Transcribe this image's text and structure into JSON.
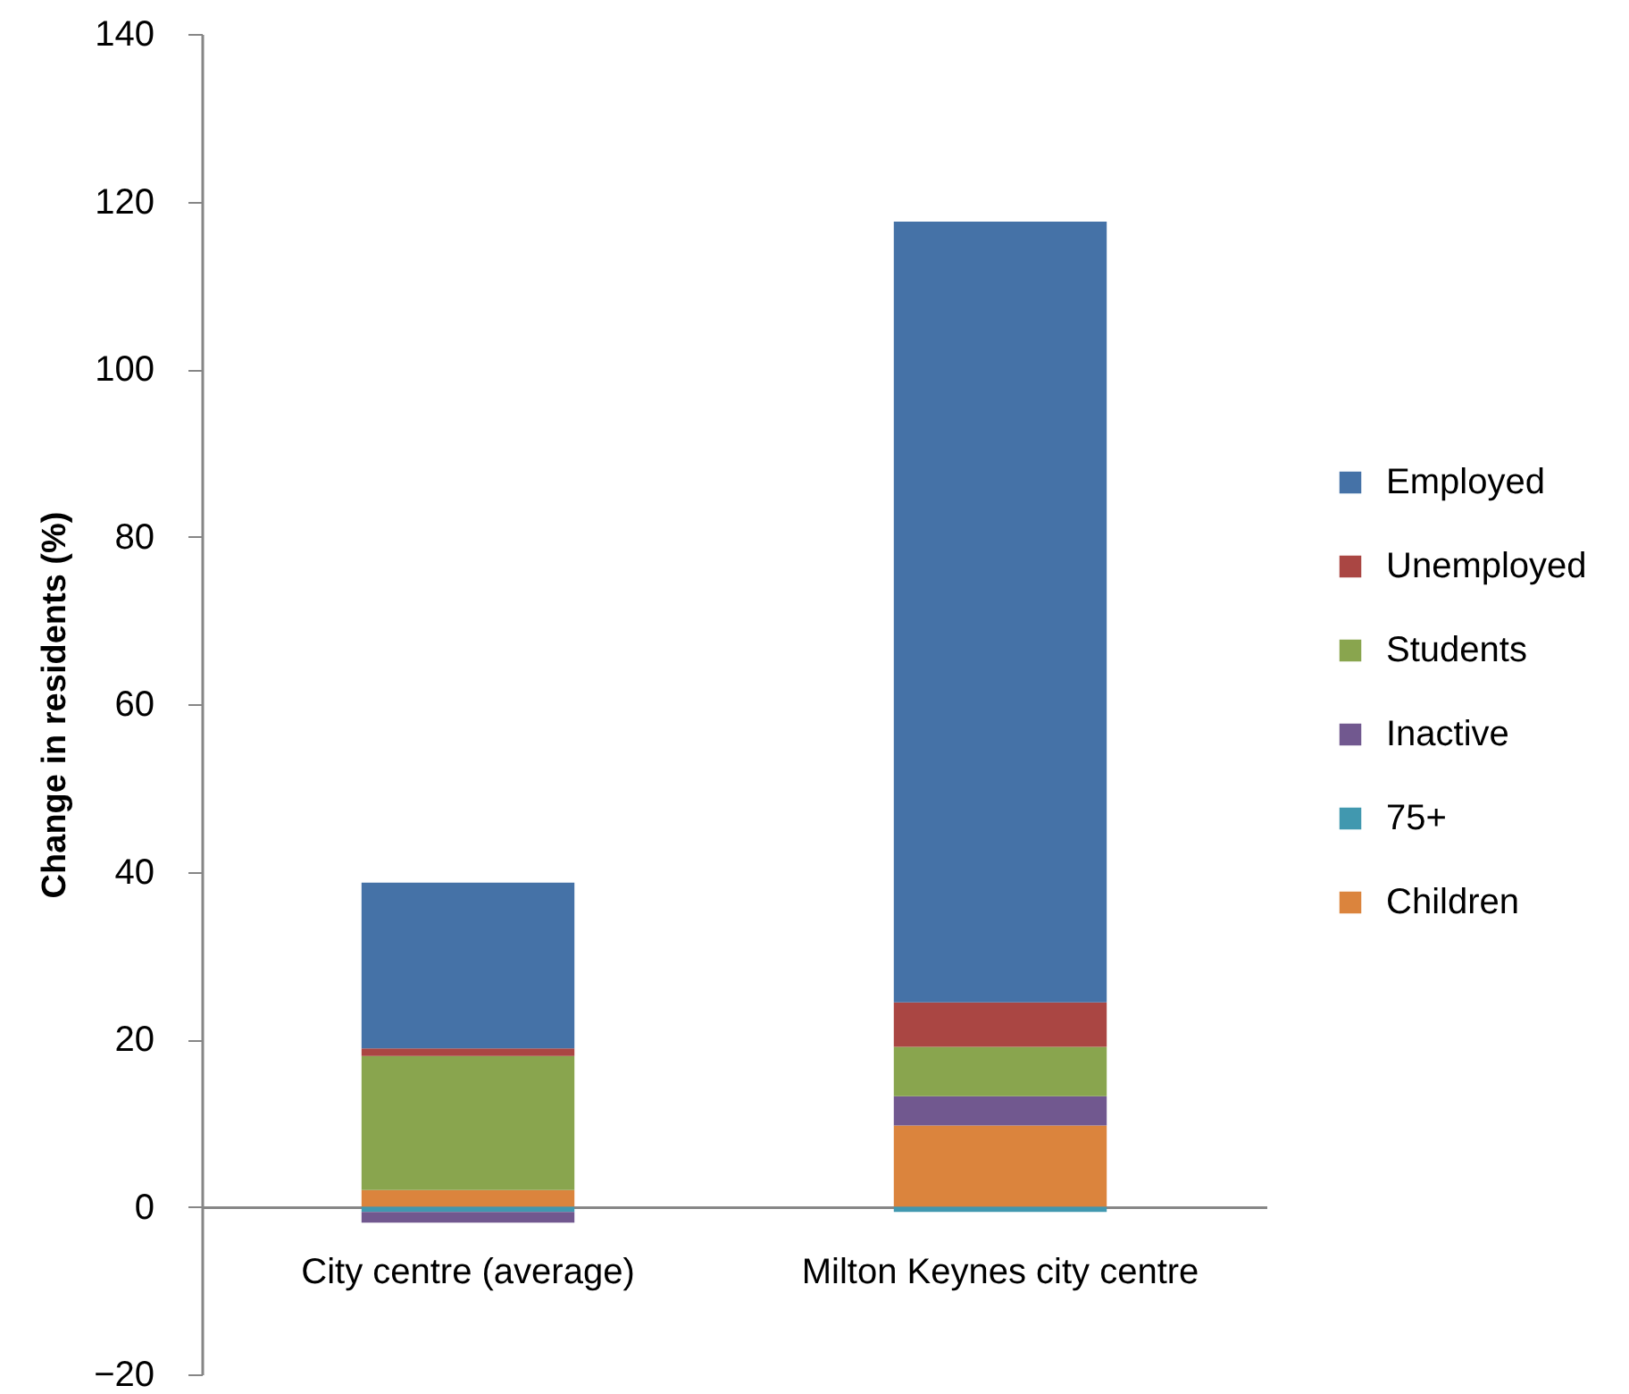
{
  "chart_data": {
    "type": "bar",
    "stacked": true,
    "ylabel": "Change in residents (%)",
    "categories": [
      "City centre (average)",
      "Milton Keynes city centre"
    ],
    "series": [
      {
        "name": "Children",
        "color": "#db843d",
        "values": [
          2.0,
          9.7
        ]
      },
      {
        "name": "75+",
        "color": "#4198af",
        "values": [
          -0.6,
          -0.6
        ]
      },
      {
        "name": "Inactive",
        "color": "#71588f",
        "values": [
          -1.3,
          3.5
        ]
      },
      {
        "name": "Students",
        "color": "#89a54e",
        "values": [
          16.0,
          5.9
        ]
      },
      {
        "name": "Unemployed",
        "color": "#aa4643",
        "values": [
          0.9,
          5.3
        ]
      },
      {
        "name": "Employed",
        "color": "#4572a7",
        "values": [
          19.8,
          93.2
        ]
      }
    ],
    "ylim": [
      -20,
      140
    ],
    "yticks": [
      -20,
      0,
      20,
      40,
      60,
      80,
      100,
      120,
      140
    ],
    "legend": "right"
  }
}
